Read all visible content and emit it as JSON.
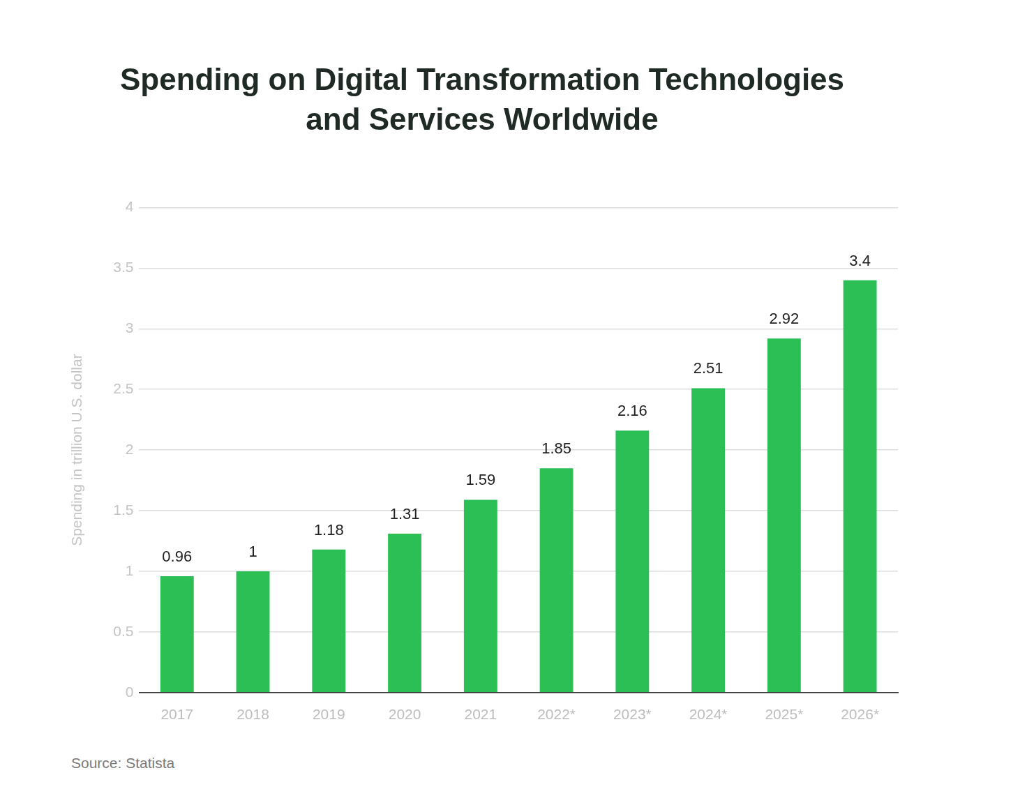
{
  "chart_data": {
    "type": "bar",
    "title": [
      "Spending on Digital Transformation Technologies",
      "and Services Worldwide"
    ],
    "y_label": "Spending in trillion U.S. dollar",
    "source": "Source: Statista",
    "categories": [
      "2017",
      "2018",
      "2019",
      "2020",
      "2021",
      "2022*",
      "2023*",
      "2024*",
      "2025*",
      "2026*"
    ],
    "values": [
      0.96,
      1,
      1.18,
      1.31,
      1.59,
      1.85,
      2.16,
      2.51,
      2.92,
      3.4
    ],
    "color": "#2cbf55",
    "ylim": [
      0,
      4
    ],
    "yticks": [
      0,
      0.5,
      1,
      1.5,
      2,
      2.5,
      3,
      3.5,
      4
    ],
    "grid": true,
    "data_labels": true,
    "legend": false
  }
}
